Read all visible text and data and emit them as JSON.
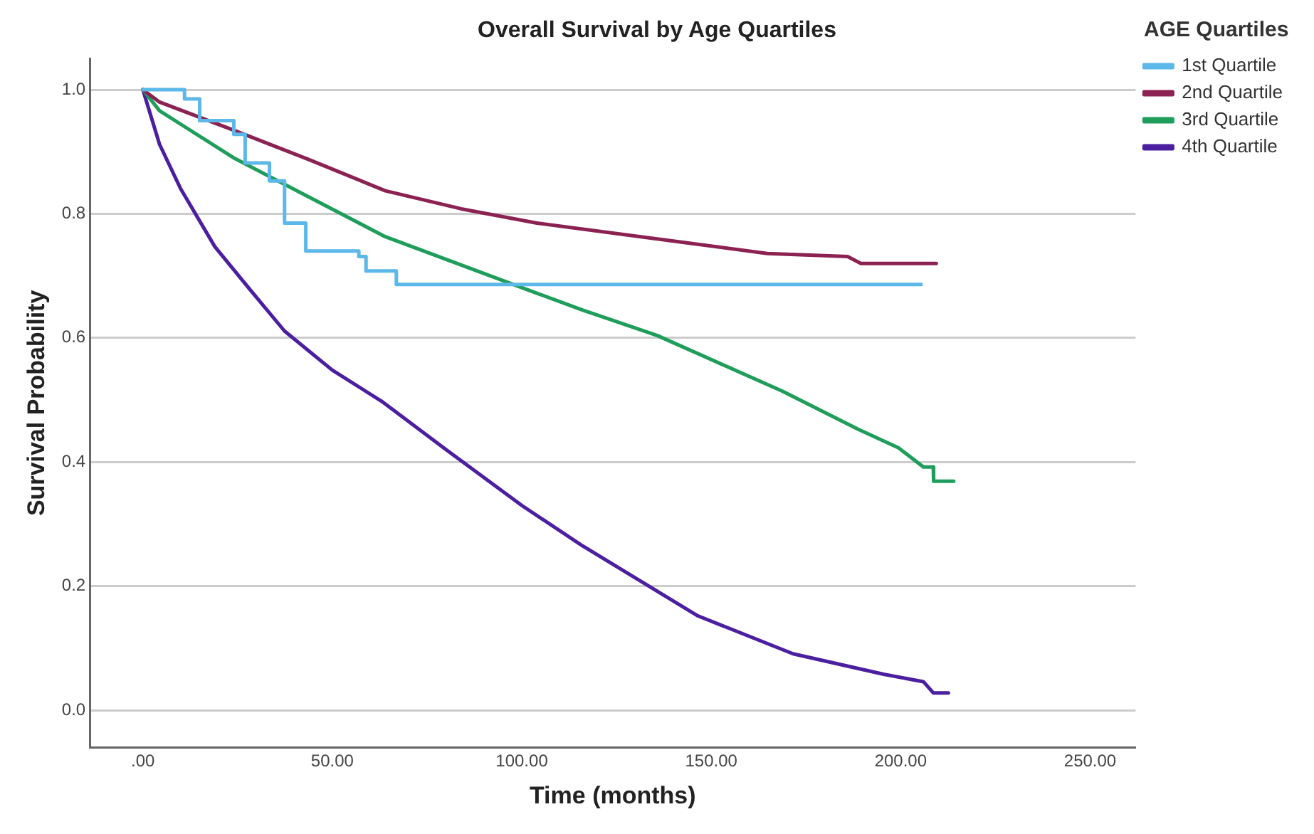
{
  "chart_data": {
    "type": "line",
    "title": "Overall Survival by Age Quartiles",
    "xlabel": "Time (months)",
    "ylabel": "Survival Probability",
    "legend_title": "AGE Quartiles",
    "legend": "top right",
    "grid": "y",
    "marker": "none",
    "line_style": "solid",
    "xlim": [
      -14,
      262
    ],
    "xticks": [
      {
        "value": 0,
        "label": ".00"
      },
      {
        "value": 50,
        "label": "50.00"
      },
      {
        "value": 100,
        "label": "100.00"
      },
      {
        "value": 150,
        "label": "150.00"
      },
      {
        "value": 200,
        "label": "200.00"
      },
      {
        "value": 250,
        "label": "250.00"
      }
    ],
    "ylim": [
      -0.06,
      1.05
    ],
    "yticks": [
      {
        "value": 0,
        "label": "0.0"
      },
      {
        "value": 0.2,
        "label": "0.2"
      },
      {
        "value": 0.4,
        "label": "0.4"
      },
      {
        "value": 0.6,
        "label": "0.6"
      },
      {
        "value": 0.8,
        "label": "0.8"
      },
      {
        "value": 1,
        "label": "1.0"
      }
    ],
    "series": [
      {
        "name": "1st Quartile",
        "type": "step",
        "color": "#5bb8e8",
        "x": [
          0,
          11,
          15,
          24,
          27,
          33.4,
          37.4,
          43,
          57,
          58.9,
          66.9,
          205.4
        ],
        "values": [
          1,
          0.985,
          0.95,
          0.928,
          0.882,
          0.853,
          0.785,
          0.74,
          0.731,
          0.708,
          0.686,
          0.686
        ]
      },
      {
        "name": "2nd Quartile",
        "type": "line",
        "color": "#8b2252",
        "x": [
          0,
          4.4,
          24.3,
          44,
          64,
          84,
          104,
          142.5,
          164.8,
          186,
          189.5,
          209.4
        ],
        "values": [
          1,
          0.98,
          0.934,
          0.887,
          0.837,
          0.808,
          0.785,
          0.754,
          0.736,
          0.731,
          0.72,
          0.72
        ]
      },
      {
        "name": "3rd Quartile",
        "type": "line",
        "color": "#1e9e5a",
        "x": [
          0,
          4.4,
          24.3,
          64,
          104,
          116,
          135.7,
          168.8,
          188.7,
          199.4,
          206,
          208.6,
          208.7,
          214
        ],
        "values": [
          1,
          0.966,
          0.889,
          0.763,
          0.672,
          0.645,
          0.604,
          0.514,
          0.453,
          0.423,
          0.392,
          0.392,
          0.369,
          0.369
        ]
      },
      {
        "name": "4th Quartile",
        "type": "line",
        "color": "#4b1fa0",
        "x": [
          0,
          4.4,
          10,
          19,
          28,
          37.4,
          50,
          63,
          80,
          100,
          116,
          146.5,
          171.6,
          195.5,
          206,
          208.6,
          212.6
        ],
        "values": [
          1,
          0.912,
          0.84,
          0.747,
          0.68,
          0.611,
          0.548,
          0.498,
          0.42,
          0.33,
          0.265,
          0.152,
          0.091,
          0.058,
          0.046,
          0.028,
          0.028
        ]
      }
    ]
  }
}
